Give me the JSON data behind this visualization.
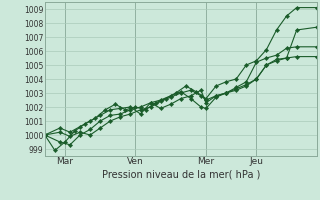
{
  "xlabel": "Pression niveau de la mer( hPa )",
  "bg_color": "#cce8da",
  "line_color": "#1a5c2a",
  "grid_color": "#aacaba",
  "vline_color": "#5a7a6a",
  "ylim": [
    998.5,
    1009.5
  ],
  "xlim": [
    0,
    108
  ],
  "day_ticks": [
    {
      "label": "Mar",
      "x": 8
    },
    {
      "label": "Ven",
      "x": 36
    },
    {
      "label": "Mer",
      "x": 64
    },
    {
      "label": "Jeu",
      "x": 84
    }
  ],
  "vline_positions": [
    8,
    36,
    64,
    84
  ],
  "yticks": [
    999,
    1000,
    1001,
    1002,
    1003,
    1004,
    1005,
    1006,
    1007,
    1008,
    1009
  ],
  "series": [
    [
      0,
      1000.0,
      4,
      998.9,
      8,
      999.5,
      12,
      1000.3,
      16,
      1000.8,
      20,
      1001.2,
      24,
      1001.8,
      28,
      1002.2,
      32,
      1001.8,
      36,
      1002.0,
      40,
      1001.8,
      44,
      1002.3,
      48,
      1002.6,
      52,
      1003.0,
      56,
      1003.5,
      60,
      1003.1,
      64,
      1002.6,
      68,
      1003.5,
      72,
      1003.8,
      76,
      1004.0,
      80,
      1005.0,
      84,
      1005.3,
      88,
      1006.1,
      92,
      1007.5,
      96,
      1008.5,
      100,
      1009.1,
      108,
      1009.1
    ],
    [
      0,
      1000.0,
      6,
      999.5,
      10,
      999.3,
      14,
      1000.0,
      18,
      1000.4,
      22,
      1001.0,
      26,
      1001.4,
      30,
      1001.5,
      34,
      1001.8,
      38,
      1002.0,
      42,
      1002.3,
      46,
      1001.9,
      50,
      1002.2,
      54,
      1002.6,
      58,
      1002.8,
      62,
      1003.2,
      64,
      1002.3,
      68,
      1002.8,
      72,
      1003.0,
      76,
      1003.3,
      80,
      1003.6,
      84,
      1004.0,
      88,
      1005.0,
      92,
      1005.3,
      96,
      1005.5,
      100,
      1007.5,
      108,
      1007.7
    ],
    [
      0,
      1000.0,
      6,
      1000.5,
      10,
      1000.2,
      14,
      1000.6,
      18,
      1001.0,
      22,
      1001.4,
      26,
      1001.8,
      30,
      1001.9,
      34,
      1002.0,
      38,
      1001.5,
      42,
      1002.3,
      46,
      1002.5,
      50,
      1002.8,
      54,
      1003.1,
      58,
      1002.6,
      62,
      1002.0,
      64,
      1001.9,
      68,
      1002.7,
      72,
      1003.0,
      76,
      1003.4,
      80,
      1003.8,
      84,
      1005.2,
      88,
      1005.5,
      92,
      1005.7,
      96,
      1006.2,
      100,
      1006.3,
      108,
      1006.3
    ],
    [
      0,
      1000.0,
      6,
      1000.2,
      10,
      999.9,
      14,
      1000.2,
      18,
      1000.0,
      22,
      1000.5,
      26,
      1001.0,
      30,
      1001.3,
      34,
      1001.5,
      38,
      1001.8,
      42,
      1002.0,
      46,
      1002.4,
      50,
      1002.7,
      54,
      1003.0,
      58,
      1003.2,
      62,
      1002.8,
      64,
      1002.5,
      68,
      1002.8,
      72,
      1003.0,
      76,
      1003.2,
      80,
      1003.5,
      84,
      1004.0,
      88,
      1005.0,
      92,
      1005.4,
      96,
      1005.5,
      100,
      1005.6,
      108,
      1005.6
    ]
  ]
}
